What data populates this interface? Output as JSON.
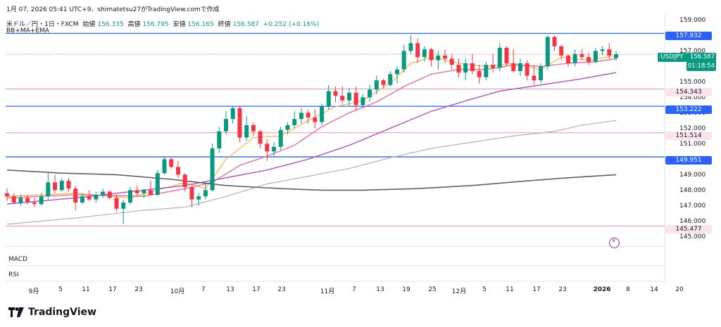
{
  "header": {
    "title": "1月 07, 2026 05:41 UTC+9、shimatetsu27がTradingView.comで作成"
  },
  "legend": {
    "symbol": "米ドル／円・1日・FXCM",
    "open_label": "始値",
    "open": "156.335",
    "high_label": "高値",
    "high": "156.795",
    "low_label": "安値",
    "low": "156.165",
    "close_label": "終値",
    "close": "156.587",
    "change": "+0.252 (+0.16%)"
  },
  "indicator_label": "BB+MA+EMA",
  "panes": {
    "macd": "MACD",
    "rsi": "RSI"
  },
  "price_axis": {
    "ticks": [
      "159.000",
      "157.000",
      "155.000",
      "154.000",
      "153.000",
      "152.000",
      "151.000",
      "149.000",
      "148.000",
      "147.000",
      "146.000",
      "145.000"
    ],
    "symbol_tag": "USDJPY",
    "current_price": "156.587",
    "countdown": "01:18:54",
    "level_tags": {
      "l1": "157.932",
      "l2": "154.343",
      "l3": "153.222",
      "l4": "151.514",
      "l5": "149.951",
      "l6": "145.477"
    }
  },
  "time_axis": {
    "labels": [
      "9月",
      "5",
      "11",
      "17",
      "23",
      "10月",
      "7",
      "13",
      "17",
      "23",
      "11月",
      "7",
      "13",
      "19",
      "25",
      "12月",
      "5",
      "11",
      "17",
      "23",
      "2026",
      "8",
      "14",
      "20"
    ]
  },
  "brand": {
    "name": "TradingView"
  },
  "colors": {
    "up": "#089981",
    "down": "#f23645",
    "blue_line": "#2962ff",
    "pink_line": "#f48fb1",
    "ema_fast": "#ffb74d",
    "ema_mid": "#f06292",
    "ma_purple": "#ab47bc",
    "bb_gray": "#b2b5be",
    "ma_dark": "#5d606b"
  },
  "chart_data": {
    "type": "candlestick",
    "symbol": "USDJPY",
    "timeframe": "1日",
    "y_range": [
      144.5,
      159.5
    ],
    "horizontal_levels": [
      157.932,
      154.343,
      153.222,
      151.514,
      149.951,
      145.477
    ],
    "current_price": 156.587,
    "candles": [
      {
        "o": 147.6,
        "h": 147.9,
        "l": 147.1,
        "c": 147.4
      },
      {
        "o": 147.4,
        "h": 147.6,
        "l": 146.9,
        "c": 147.0
      },
      {
        "o": 147.0,
        "h": 147.5,
        "l": 146.8,
        "c": 147.3
      },
      {
        "o": 147.3,
        "h": 147.5,
        "l": 146.9,
        "c": 147.0
      },
      {
        "o": 147.0,
        "h": 147.3,
        "l": 146.7,
        "c": 146.9
      },
      {
        "o": 146.9,
        "h": 147.6,
        "l": 146.8,
        "c": 147.4
      },
      {
        "o": 147.4,
        "h": 148.9,
        "l": 147.2,
        "c": 148.3
      },
      {
        "o": 148.3,
        "h": 148.8,
        "l": 147.6,
        "c": 147.8
      },
      {
        "o": 147.8,
        "h": 148.6,
        "l": 147.7,
        "c": 148.4
      },
      {
        "o": 148.4,
        "h": 148.6,
        "l": 147.7,
        "c": 147.9
      },
      {
        "o": 147.9,
        "h": 148.1,
        "l": 146.5,
        "c": 147.0
      },
      {
        "o": 147.0,
        "h": 147.6,
        "l": 146.9,
        "c": 147.4
      },
      {
        "o": 147.4,
        "h": 147.8,
        "l": 147.1,
        "c": 147.2
      },
      {
        "o": 147.2,
        "h": 147.7,
        "l": 147.0,
        "c": 147.5
      },
      {
        "o": 147.5,
        "h": 147.9,
        "l": 147.3,
        "c": 147.7
      },
      {
        "o": 147.7,
        "h": 147.8,
        "l": 147.2,
        "c": 147.3
      },
      {
        "o": 147.3,
        "h": 147.5,
        "l": 146.4,
        "c": 146.6
      },
      {
        "o": 146.6,
        "h": 147.2,
        "l": 145.6,
        "c": 147.0
      },
      {
        "o": 147.0,
        "h": 148.0,
        "l": 146.9,
        "c": 147.8
      },
      {
        "o": 147.8,
        "h": 148.1,
        "l": 147.4,
        "c": 147.6
      },
      {
        "o": 147.6,
        "h": 147.9,
        "l": 147.3,
        "c": 147.8
      },
      {
        "o": 147.8,
        "h": 148.4,
        "l": 147.6,
        "c": 147.5
      },
      {
        "o": 147.5,
        "h": 149.1,
        "l": 147.4,
        "c": 148.9
      },
      {
        "o": 148.9,
        "h": 150.0,
        "l": 148.8,
        "c": 149.8
      },
      {
        "o": 149.8,
        "h": 149.9,
        "l": 149.2,
        "c": 149.3
      },
      {
        "o": 149.3,
        "h": 149.7,
        "l": 148.6,
        "c": 148.8
      },
      {
        "o": 148.8,
        "h": 148.9,
        "l": 147.7,
        "c": 148.0
      },
      {
        "o": 148.0,
        "h": 148.1,
        "l": 146.7,
        "c": 147.2
      },
      {
        "o": 147.2,
        "h": 147.6,
        "l": 146.8,
        "c": 147.4
      },
      {
        "o": 147.4,
        "h": 148.2,
        "l": 147.2,
        "c": 147.8
      },
      {
        "o": 147.8,
        "h": 150.8,
        "l": 147.7,
        "c": 150.5
      },
      {
        "o": 150.5,
        "h": 151.9,
        "l": 150.2,
        "c": 151.6
      },
      {
        "o": 151.6,
        "h": 152.9,
        "l": 151.4,
        "c": 152.4
      },
      {
        "o": 152.4,
        "h": 153.2,
        "l": 152.1,
        "c": 153.1
      },
      {
        "o": 153.1,
        "h": 153.2,
        "l": 150.9,
        "c": 151.2
      },
      {
        "o": 151.2,
        "h": 152.6,
        "l": 151.0,
        "c": 152.0
      },
      {
        "o": 152.0,
        "h": 152.2,
        "l": 151.3,
        "c": 151.6
      },
      {
        "o": 151.6,
        "h": 151.7,
        "l": 150.5,
        "c": 150.8
      },
      {
        "o": 150.8,
        "h": 151.1,
        "l": 149.7,
        "c": 150.3
      },
      {
        "o": 150.3,
        "h": 150.9,
        "l": 150.0,
        "c": 150.6
      },
      {
        "o": 150.6,
        "h": 151.9,
        "l": 150.4,
        "c": 151.7
      },
      {
        "o": 151.7,
        "h": 152.2,
        "l": 151.4,
        "c": 152.0
      },
      {
        "o": 152.0,
        "h": 152.9,
        "l": 151.8,
        "c": 152.4
      },
      {
        "o": 152.4,
        "h": 153.1,
        "l": 152.1,
        "c": 152.8
      },
      {
        "o": 152.8,
        "h": 153.0,
        "l": 152.1,
        "c": 152.5
      },
      {
        "o": 152.5,
        "h": 153.0,
        "l": 151.8,
        "c": 152.2
      },
      {
        "o": 152.2,
        "h": 153.4,
        "l": 152.0,
        "c": 153.2
      },
      {
        "o": 153.2,
        "h": 154.6,
        "l": 153.0,
        "c": 154.2
      },
      {
        "o": 154.2,
        "h": 154.5,
        "l": 153.5,
        "c": 153.9
      },
      {
        "o": 153.9,
        "h": 154.5,
        "l": 153.4,
        "c": 153.6
      },
      {
        "o": 153.6,
        "h": 154.4,
        "l": 153.2,
        "c": 154.1
      },
      {
        "o": 154.1,
        "h": 154.5,
        "l": 153.0,
        "c": 153.3
      },
      {
        "o": 153.3,
        "h": 154.0,
        "l": 153.1,
        "c": 153.8
      },
      {
        "o": 153.8,
        "h": 154.6,
        "l": 153.5,
        "c": 154.3
      },
      {
        "o": 154.3,
        "h": 155.2,
        "l": 154.0,
        "c": 154.9
      },
      {
        "o": 154.9,
        "h": 155.0,
        "l": 154.4,
        "c": 154.6
      },
      {
        "o": 154.6,
        "h": 155.5,
        "l": 154.5,
        "c": 155.3
      },
      {
        "o": 155.3,
        "h": 155.8,
        "l": 154.7,
        "c": 155.6
      },
      {
        "o": 155.6,
        "h": 157.2,
        "l": 155.4,
        "c": 156.8
      },
      {
        "o": 156.8,
        "h": 157.8,
        "l": 156.6,
        "c": 157.3
      },
      {
        "o": 157.3,
        "h": 157.6,
        "l": 156.0,
        "c": 156.4
      },
      {
        "o": 156.4,
        "h": 157.1,
        "l": 156.1,
        "c": 156.9
      },
      {
        "o": 156.9,
        "h": 157.0,
        "l": 155.8,
        "c": 156.2
      },
      {
        "o": 156.2,
        "h": 156.8,
        "l": 155.6,
        "c": 156.5
      },
      {
        "o": 156.5,
        "h": 156.9,
        "l": 156.0,
        "c": 156.3
      },
      {
        "o": 156.3,
        "h": 156.6,
        "l": 155.6,
        "c": 155.9
      },
      {
        "o": 155.9,
        "h": 156.3,
        "l": 155.1,
        "c": 155.4
      },
      {
        "o": 155.4,
        "h": 156.3,
        "l": 154.9,
        "c": 156.0
      },
      {
        "o": 156.0,
        "h": 156.6,
        "l": 155.3,
        "c": 155.5
      },
      {
        "o": 155.5,
        "h": 155.9,
        "l": 154.7,
        "c": 155.1
      },
      {
        "o": 155.1,
        "h": 156.1,
        "l": 154.9,
        "c": 155.9
      },
      {
        "o": 155.9,
        "h": 156.6,
        "l": 155.4,
        "c": 155.7
      },
      {
        "o": 155.7,
        "h": 157.3,
        "l": 155.5,
        "c": 157.0
      },
      {
        "o": 157.0,
        "h": 157.1,
        "l": 155.8,
        "c": 156.0
      },
      {
        "o": 156.0,
        "h": 156.9,
        "l": 155.4,
        "c": 155.5
      },
      {
        "o": 155.5,
        "h": 156.3,
        "l": 155.2,
        "c": 156.0
      },
      {
        "o": 156.0,
        "h": 156.2,
        "l": 154.9,
        "c": 155.2
      },
      {
        "o": 155.2,
        "h": 155.9,
        "l": 154.6,
        "c": 154.9
      },
      {
        "o": 154.9,
        "h": 156.0,
        "l": 154.7,
        "c": 155.8
      },
      {
        "o": 155.8,
        "h": 157.8,
        "l": 155.6,
        "c": 157.7
      },
      {
        "o": 157.7,
        "h": 157.8,
        "l": 156.8,
        "c": 157.1
      },
      {
        "o": 157.1,
        "h": 157.2,
        "l": 156.2,
        "c": 156.5
      },
      {
        "o": 156.5,
        "h": 156.6,
        "l": 155.8,
        "c": 156.0
      },
      {
        "o": 156.0,
        "h": 156.9,
        "l": 155.8,
        "c": 156.6
      },
      {
        "o": 156.6,
        "h": 156.9,
        "l": 156.2,
        "c": 156.4
      },
      {
        "o": 156.4,
        "h": 156.7,
        "l": 155.9,
        "c": 156.1
      },
      {
        "o": 156.1,
        "h": 157.0,
        "l": 156.0,
        "c": 156.8
      },
      {
        "o": 156.8,
        "h": 157.1,
        "l": 156.5,
        "c": 156.9
      },
      {
        "o": 156.9,
        "h": 157.3,
        "l": 156.3,
        "c": 156.5
      },
      {
        "o": 156.335,
        "h": 156.795,
        "l": 156.165,
        "c": 156.587
      }
    ],
    "lines": [
      {
        "key": "ema_fast",
        "color": "#ffb74d",
        "points": [
          [
            0,
            147.4
          ],
          [
            10,
            147.6
          ],
          [
            18,
            147.3
          ],
          [
            22,
            147.8
          ],
          [
            26,
            148.3
          ],
          [
            29,
            147.9
          ],
          [
            32,
            149.8
          ],
          [
            36,
            151.2
          ],
          [
            40,
            151.3
          ],
          [
            44,
            152.3
          ],
          [
            48,
            153.2
          ],
          [
            52,
            153.6
          ],
          [
            56,
            154.7
          ],
          [
            59,
            156.0
          ],
          [
            62,
            156.4
          ],
          [
            66,
            156.0
          ],
          [
            70,
            155.8
          ],
          [
            74,
            156.0
          ],
          [
            78,
            155.6
          ],
          [
            81,
            156.4
          ],
          [
            85,
            156.2
          ],
          [
            89,
            156.5
          ]
        ]
      },
      {
        "key": "ema_mid",
        "color": "#f06292",
        "points": [
          [
            0,
            147.3
          ],
          [
            10,
            147.5
          ],
          [
            20,
            147.4
          ],
          [
            26,
            147.9
          ],
          [
            30,
            148.3
          ],
          [
            34,
            149.4
          ],
          [
            38,
            150.0
          ],
          [
            42,
            150.7
          ],
          [
            46,
            151.9
          ],
          [
            50,
            152.8
          ],
          [
            54,
            153.5
          ],
          [
            58,
            154.5
          ],
          [
            62,
            155.3
          ],
          [
            66,
            155.6
          ],
          [
            70,
            155.6
          ],
          [
            74,
            155.9
          ],
          [
            78,
            155.8
          ],
          [
            82,
            156.0
          ],
          [
            86,
            156.1
          ],
          [
            89,
            156.3
          ]
        ]
      },
      {
        "key": "ma_purple",
        "color": "#ab47bc",
        "points": [
          [
            0,
            146.9
          ],
          [
            10,
            147.3
          ],
          [
            20,
            147.8
          ],
          [
            26,
            148.1
          ],
          [
            32,
            148.6
          ],
          [
            38,
            149.1
          ],
          [
            44,
            149.8
          ],
          [
            50,
            150.7
          ],
          [
            56,
            151.8
          ],
          [
            62,
            152.9
          ],
          [
            68,
            153.7
          ],
          [
            72,
            154.2
          ],
          [
            78,
            154.6
          ],
          [
            84,
            155.0
          ],
          [
            89,
            155.4
          ]
        ]
      },
      {
        "key": "bb_gray",
        "color": "#b2b5be",
        "points": [
          [
            0,
            145.6
          ],
          [
            10,
            146.0
          ],
          [
            20,
            146.5
          ],
          [
            26,
            146.7
          ],
          [
            32,
            147.4
          ],
          [
            38,
            148.2
          ],
          [
            44,
            148.7
          ],
          [
            50,
            149.2
          ],
          [
            56,
            149.9
          ],
          [
            62,
            150.5
          ],
          [
            68,
            150.9
          ],
          [
            74,
            151.3
          ],
          [
            80,
            151.6
          ],
          [
            84,
            152.0
          ],
          [
            89,
            152.3
          ]
        ]
      },
      {
        "key": "ma_dark",
        "color": "#5d606b",
        "points": [
          [
            0,
            149.1
          ],
          [
            8,
            148.9
          ],
          [
            16,
            148.8
          ],
          [
            24,
            148.5
          ],
          [
            32,
            148.1
          ],
          [
            40,
            147.9
          ],
          [
            46,
            147.8
          ],
          [
            52,
            147.8
          ],
          [
            60,
            147.9
          ],
          [
            68,
            148.1
          ],
          [
            76,
            148.4
          ],
          [
            82,
            148.6
          ],
          [
            89,
            148.8
          ]
        ]
      }
    ]
  }
}
